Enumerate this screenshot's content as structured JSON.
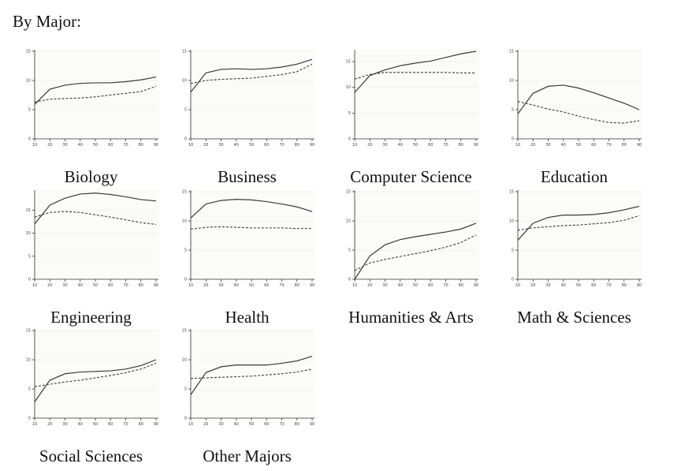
{
  "heading": "By Major:",
  "chart_data": [
    {
      "type": "line",
      "title": "Biology",
      "x": [
        10,
        20,
        30,
        40,
        50,
        60,
        70,
        80,
        90
      ],
      "ylim": [
        0,
        15
      ],
      "yticks": [
        0,
        5,
        10,
        15
      ],
      "xticks": [
        10,
        20,
        30,
        40,
        50,
        60,
        70,
        80,
        90
      ],
      "series": [
        {
          "style": "solid",
          "values": [
            5.9,
            8.5,
            9.2,
            9.5,
            9.6,
            9.6,
            9.8,
            10.1,
            10.6
          ]
        },
        {
          "style": "dashed",
          "values": [
            6.3,
            6.8,
            6.9,
            7.0,
            7.2,
            7.5,
            7.8,
            8.1,
            9.0
          ]
        }
      ]
    },
    {
      "type": "line",
      "title": "Business",
      "x": [
        10,
        20,
        30,
        40,
        50,
        60,
        70,
        80,
        90
      ],
      "ylim": [
        0,
        15
      ],
      "yticks": [
        0,
        5,
        10,
        15
      ],
      "xticks": [
        10,
        20,
        30,
        40,
        50,
        60,
        70,
        80,
        90
      ],
      "series": [
        {
          "style": "solid",
          "values": [
            8.0,
            11.3,
            11.9,
            12.0,
            11.9,
            12.0,
            12.3,
            12.8,
            13.6
          ]
        },
        {
          "style": "dashed",
          "values": [
            9.5,
            10.0,
            10.2,
            10.3,
            10.4,
            10.7,
            11.0,
            11.5,
            12.8
          ]
        }
      ]
    },
    {
      "type": "line",
      "title": "Computer Science",
      "x": [
        10,
        20,
        30,
        40,
        50,
        60,
        70,
        80,
        90
      ],
      "ylim": [
        0,
        17
      ],
      "yticks": [
        0,
        5,
        10,
        15
      ],
      "xticks": [
        10,
        20,
        30,
        40,
        50,
        60,
        70,
        80,
        90
      ],
      "series": [
        {
          "style": "solid",
          "values": [
            9.0,
            12.3,
            13.4,
            14.2,
            14.7,
            15.1,
            15.8,
            16.5,
            17.0
          ]
        },
        {
          "style": "dashed",
          "values": [
            11.6,
            12.5,
            12.9,
            12.9,
            12.9,
            12.9,
            12.9,
            12.8,
            12.8
          ]
        }
      ]
    },
    {
      "type": "line",
      "title": "Education",
      "x": [
        10,
        20,
        30,
        40,
        50,
        60,
        70,
        80,
        90
      ],
      "ylim": [
        0,
        15
      ],
      "yticks": [
        0,
        5,
        10,
        15
      ],
      "xticks": [
        10,
        20,
        30,
        40,
        50,
        60,
        70,
        80,
        90
      ],
      "series": [
        {
          "style": "solid",
          "values": [
            4.3,
            7.8,
            9.0,
            9.2,
            8.7,
            7.9,
            7.0,
            6.1,
            5.0
          ]
        },
        {
          "style": "dashed",
          "values": [
            6.4,
            5.8,
            5.1,
            4.6,
            3.9,
            3.3,
            2.8,
            2.7,
            3.1
          ]
        }
      ]
    },
    {
      "type": "line",
      "title": "Engineering",
      "x": [
        10,
        20,
        30,
        40,
        50,
        60,
        70,
        80,
        90
      ],
      "ylim": [
        0,
        19
      ],
      "yticks": [
        0,
        5,
        10,
        15
      ],
      "xticks": [
        10,
        20,
        30,
        40,
        50,
        60,
        70,
        80,
        90
      ],
      "series": [
        {
          "style": "solid",
          "values": [
            12.0,
            16.1,
            17.6,
            18.5,
            18.7,
            18.4,
            17.9,
            17.3,
            17.0
          ]
        },
        {
          "style": "dashed",
          "values": [
            13.5,
            14.5,
            14.7,
            14.5,
            14.0,
            13.5,
            12.9,
            12.3,
            11.9
          ]
        }
      ]
    },
    {
      "type": "line",
      "title": "Health",
      "x": [
        10,
        20,
        30,
        40,
        50,
        60,
        70,
        80,
        90
      ],
      "ylim": [
        0,
        15
      ],
      "yticks": [
        0,
        5,
        10,
        15
      ],
      "xticks": [
        10,
        20,
        30,
        40,
        50,
        60,
        70,
        80,
        90
      ],
      "series": [
        {
          "style": "solid",
          "values": [
            10.5,
            12.9,
            13.5,
            13.7,
            13.6,
            13.3,
            12.9,
            12.4,
            11.6
          ]
        },
        {
          "style": "dashed",
          "values": [
            8.6,
            8.9,
            9.0,
            8.9,
            8.8,
            8.8,
            8.8,
            8.7,
            8.7
          ]
        }
      ]
    },
    {
      "type": "line",
      "title": "Humanities & Arts",
      "x": [
        10,
        20,
        30,
        40,
        50,
        60,
        70,
        80,
        90
      ],
      "ylim": [
        0,
        15
      ],
      "yticks": [
        0,
        5,
        10,
        15
      ],
      "xticks": [
        10,
        20,
        30,
        40,
        50,
        60,
        70,
        80,
        90
      ],
      "series": [
        {
          "style": "solid",
          "values": [
            0.0,
            4.0,
            5.9,
            6.8,
            7.3,
            7.7,
            8.1,
            8.6,
            9.6
          ]
        },
        {
          "style": "dashed",
          "values": [
            1.5,
            2.8,
            3.4,
            3.9,
            4.4,
            4.9,
            5.5,
            6.3,
            7.6
          ]
        }
      ]
    },
    {
      "type": "line",
      "title": "Math & Sciences",
      "x": [
        10,
        20,
        30,
        40,
        50,
        60,
        70,
        80,
        90
      ],
      "ylim": [
        0,
        15
      ],
      "yticks": [
        0,
        5,
        10,
        15
      ],
      "xticks": [
        10,
        20,
        30,
        40,
        50,
        60,
        70,
        80,
        90
      ],
      "series": [
        {
          "style": "solid",
          "values": [
            6.7,
            9.6,
            10.6,
            11.0,
            11.0,
            11.1,
            11.4,
            11.9,
            12.5
          ]
        },
        {
          "style": "dashed",
          "values": [
            8.4,
            8.8,
            9.0,
            9.2,
            9.3,
            9.5,
            9.7,
            10.1,
            10.9
          ]
        }
      ]
    },
    {
      "type": "line",
      "title": "Social Sciences",
      "x": [
        10,
        20,
        30,
        40,
        50,
        60,
        70,
        80,
        90
      ],
      "ylim": [
        0,
        15
      ],
      "yticks": [
        0,
        5,
        10,
        15
      ],
      "xticks": [
        10,
        20,
        30,
        40,
        50,
        60,
        70,
        80,
        90
      ],
      "series": [
        {
          "style": "solid",
          "values": [
            2.8,
            6.5,
            7.6,
            7.9,
            8.0,
            8.1,
            8.4,
            9.0,
            10.0
          ]
        },
        {
          "style": "dashed",
          "values": [
            5.4,
            5.8,
            6.2,
            6.5,
            6.9,
            7.3,
            7.8,
            8.4,
            9.4
          ]
        }
      ]
    },
    {
      "type": "line",
      "title": "Other Majors",
      "x": [
        10,
        20,
        30,
        40,
        50,
        60,
        70,
        80,
        90
      ],
      "ylim": [
        0,
        15
      ],
      "yticks": [
        0,
        5,
        10,
        15
      ],
      "xticks": [
        10,
        20,
        30,
        40,
        50,
        60,
        70,
        80,
        90
      ],
      "series": [
        {
          "style": "solid",
          "values": [
            4.0,
            7.8,
            8.8,
            9.1,
            9.1,
            9.1,
            9.4,
            9.8,
            10.6
          ]
        },
        {
          "style": "dashed",
          "values": [
            6.8,
            6.9,
            7.0,
            7.1,
            7.2,
            7.4,
            7.6,
            7.9,
            8.4
          ]
        }
      ]
    }
  ]
}
